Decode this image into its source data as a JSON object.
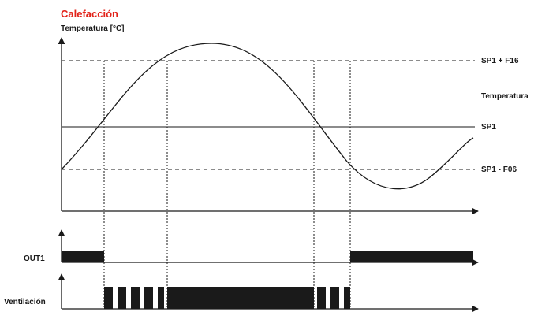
{
  "title": "Calefacción",
  "y_axis_label": "Temperatura [°C]",
  "curve_label": "Temperatura",
  "levels": {
    "upper": "SP1 + F16",
    "setpoint": "SP1",
    "lower": "SP1 - F06"
  },
  "signals": {
    "out1": "OUT1",
    "ventilation": "Ventilación"
  },
  "colors": {
    "title": "#e2231a",
    "ink": "#1a1a1a"
  }
}
